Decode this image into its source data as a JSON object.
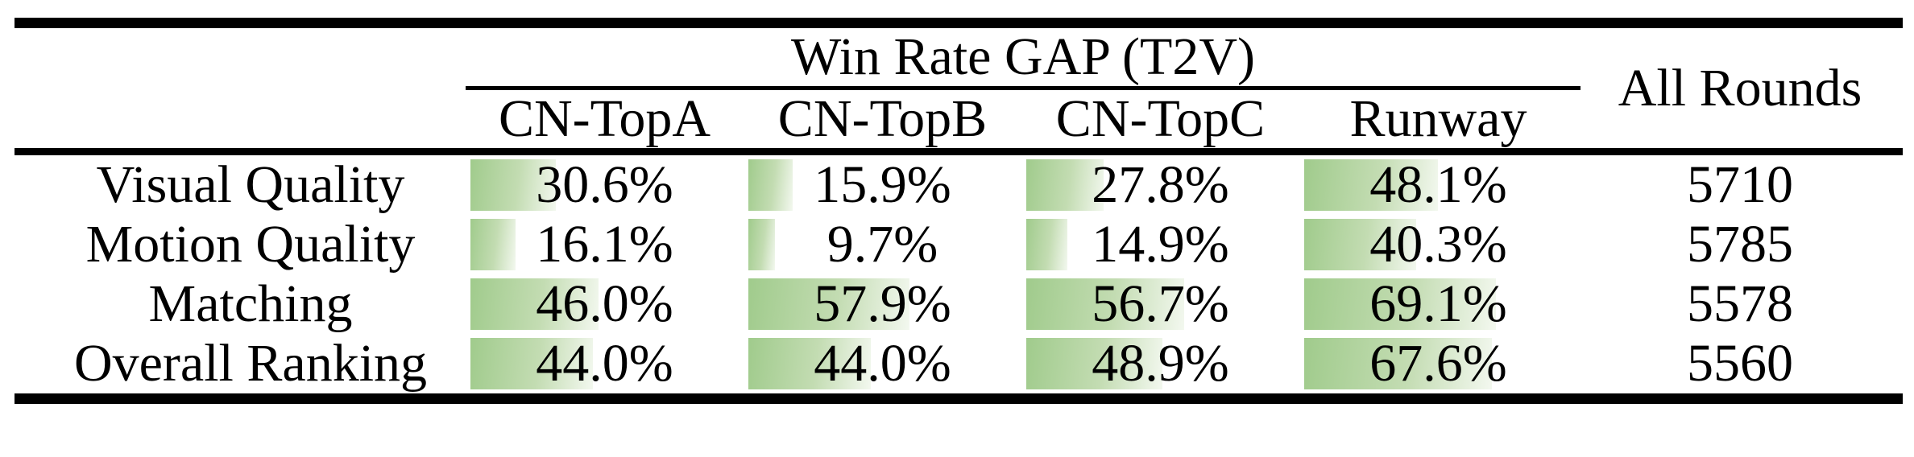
{
  "table": {
    "group_header": "Win Rate GAP (T2V)",
    "all_rounds_header": "All Rounds",
    "columns": [
      "CN-TopA",
      "CN-TopB",
      "CN-TopC",
      "Runway"
    ],
    "rows": [
      {
        "label": "Visual Quality",
        "values": [
          "30.6%",
          "15.9%",
          "27.8%",
          "48.1%"
        ],
        "bars": [
          30.6,
          15.9,
          27.8,
          48.1
        ],
        "all_rounds": "5710"
      },
      {
        "label": "Motion Quality",
        "values": [
          "16.1%",
          "9.7%",
          "14.9%",
          "40.3%"
        ],
        "bars": [
          16.1,
          9.7,
          14.9,
          40.3
        ],
        "all_rounds": "5785"
      },
      {
        "label": "Matching",
        "values": [
          "46.0%",
          "57.9%",
          "56.7%",
          "69.1%"
        ],
        "bars": [
          46.0,
          57.9,
          56.7,
          69.1
        ],
        "all_rounds": "5578"
      },
      {
        "label": "Overall Ranking",
        "values": [
          "44.0%",
          "44.0%",
          "48.9%",
          "67.6%"
        ],
        "bars": [
          44.0,
          44.0,
          48.9,
          67.6
        ],
        "all_rounds": "5560"
      }
    ],
    "colors": {
      "bar_gradient_start": "#a0cb8c",
      "bar_gradient_end": "#f3f8ef",
      "rule": "#000000",
      "text": "#000000",
      "background": "#ffffff"
    }
  },
  "chart_data": {
    "type": "table",
    "title": "Win Rate GAP (T2V)",
    "columns": [
      "CN-TopA",
      "CN-TopB",
      "CN-TopC",
      "Runway",
      "All Rounds"
    ],
    "row_labels": [
      "Visual Quality",
      "Motion Quality",
      "Matching",
      "Overall Ranking"
    ],
    "win_rate_gap_percent": {
      "Visual Quality": [
        30.6,
        15.9,
        27.8,
        48.1
      ],
      "Motion Quality": [
        16.1,
        9.7,
        14.9,
        40.3
      ],
      "Matching": [
        46.0,
        57.9,
        56.7,
        69.1
      ],
      "Overall Ranking": [
        44.0,
        44.0,
        48.9,
        67.6
      ]
    },
    "all_rounds": [
      5710,
      5785,
      5578,
      5560
    ],
    "bar_scale_percent_max": 100,
    "bar_style": "in-cell horizontal data bar, green fading to white, length proportional to value"
  }
}
